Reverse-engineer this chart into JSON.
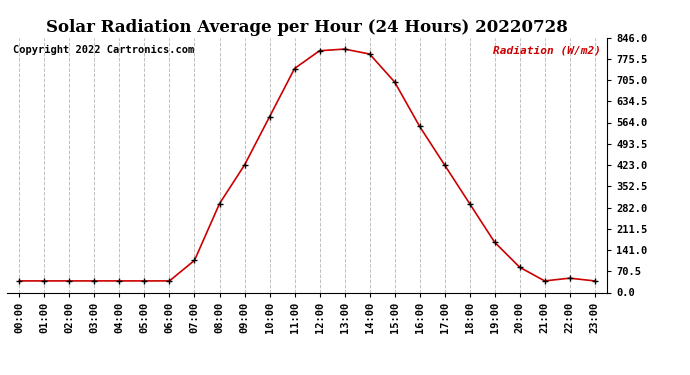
{
  "title": "Solar Radiation Average per Hour (24 Hours) 20220728",
  "copyright_text": "Copyright 2022 Cartronics.com",
  "ylabel": "Radiation (W/m2)",
  "hours": [
    "00:00",
    "01:00",
    "02:00",
    "03:00",
    "04:00",
    "05:00",
    "06:00",
    "07:00",
    "08:00",
    "09:00",
    "10:00",
    "11:00",
    "12:00",
    "13:00",
    "14:00",
    "15:00",
    "16:00",
    "17:00",
    "18:00",
    "19:00",
    "20:00",
    "21:00",
    "22:00",
    "23:00"
  ],
  "values": [
    0,
    0,
    0,
    0,
    0,
    0,
    0,
    75,
    282,
    423,
    599,
    775,
    840,
    846,
    828,
    726,
    564,
    423,
    282,
    141,
    50,
    0,
    10,
    0
  ],
  "line_color": "#cc0000",
  "marker_color": "#000000",
  "grid_color": "#c0c0c0",
  "background_color": "#ffffff",
  "title_fontsize": 12,
  "tick_fontsize": 7.5,
  "ylim": [
    0,
    846
  ],
  "yticks": [
    0.0,
    70.5,
    141.0,
    211.5,
    282.0,
    352.5,
    423.0,
    493.5,
    564.0,
    634.5,
    705.0,
    775.5,
    846.0
  ]
}
